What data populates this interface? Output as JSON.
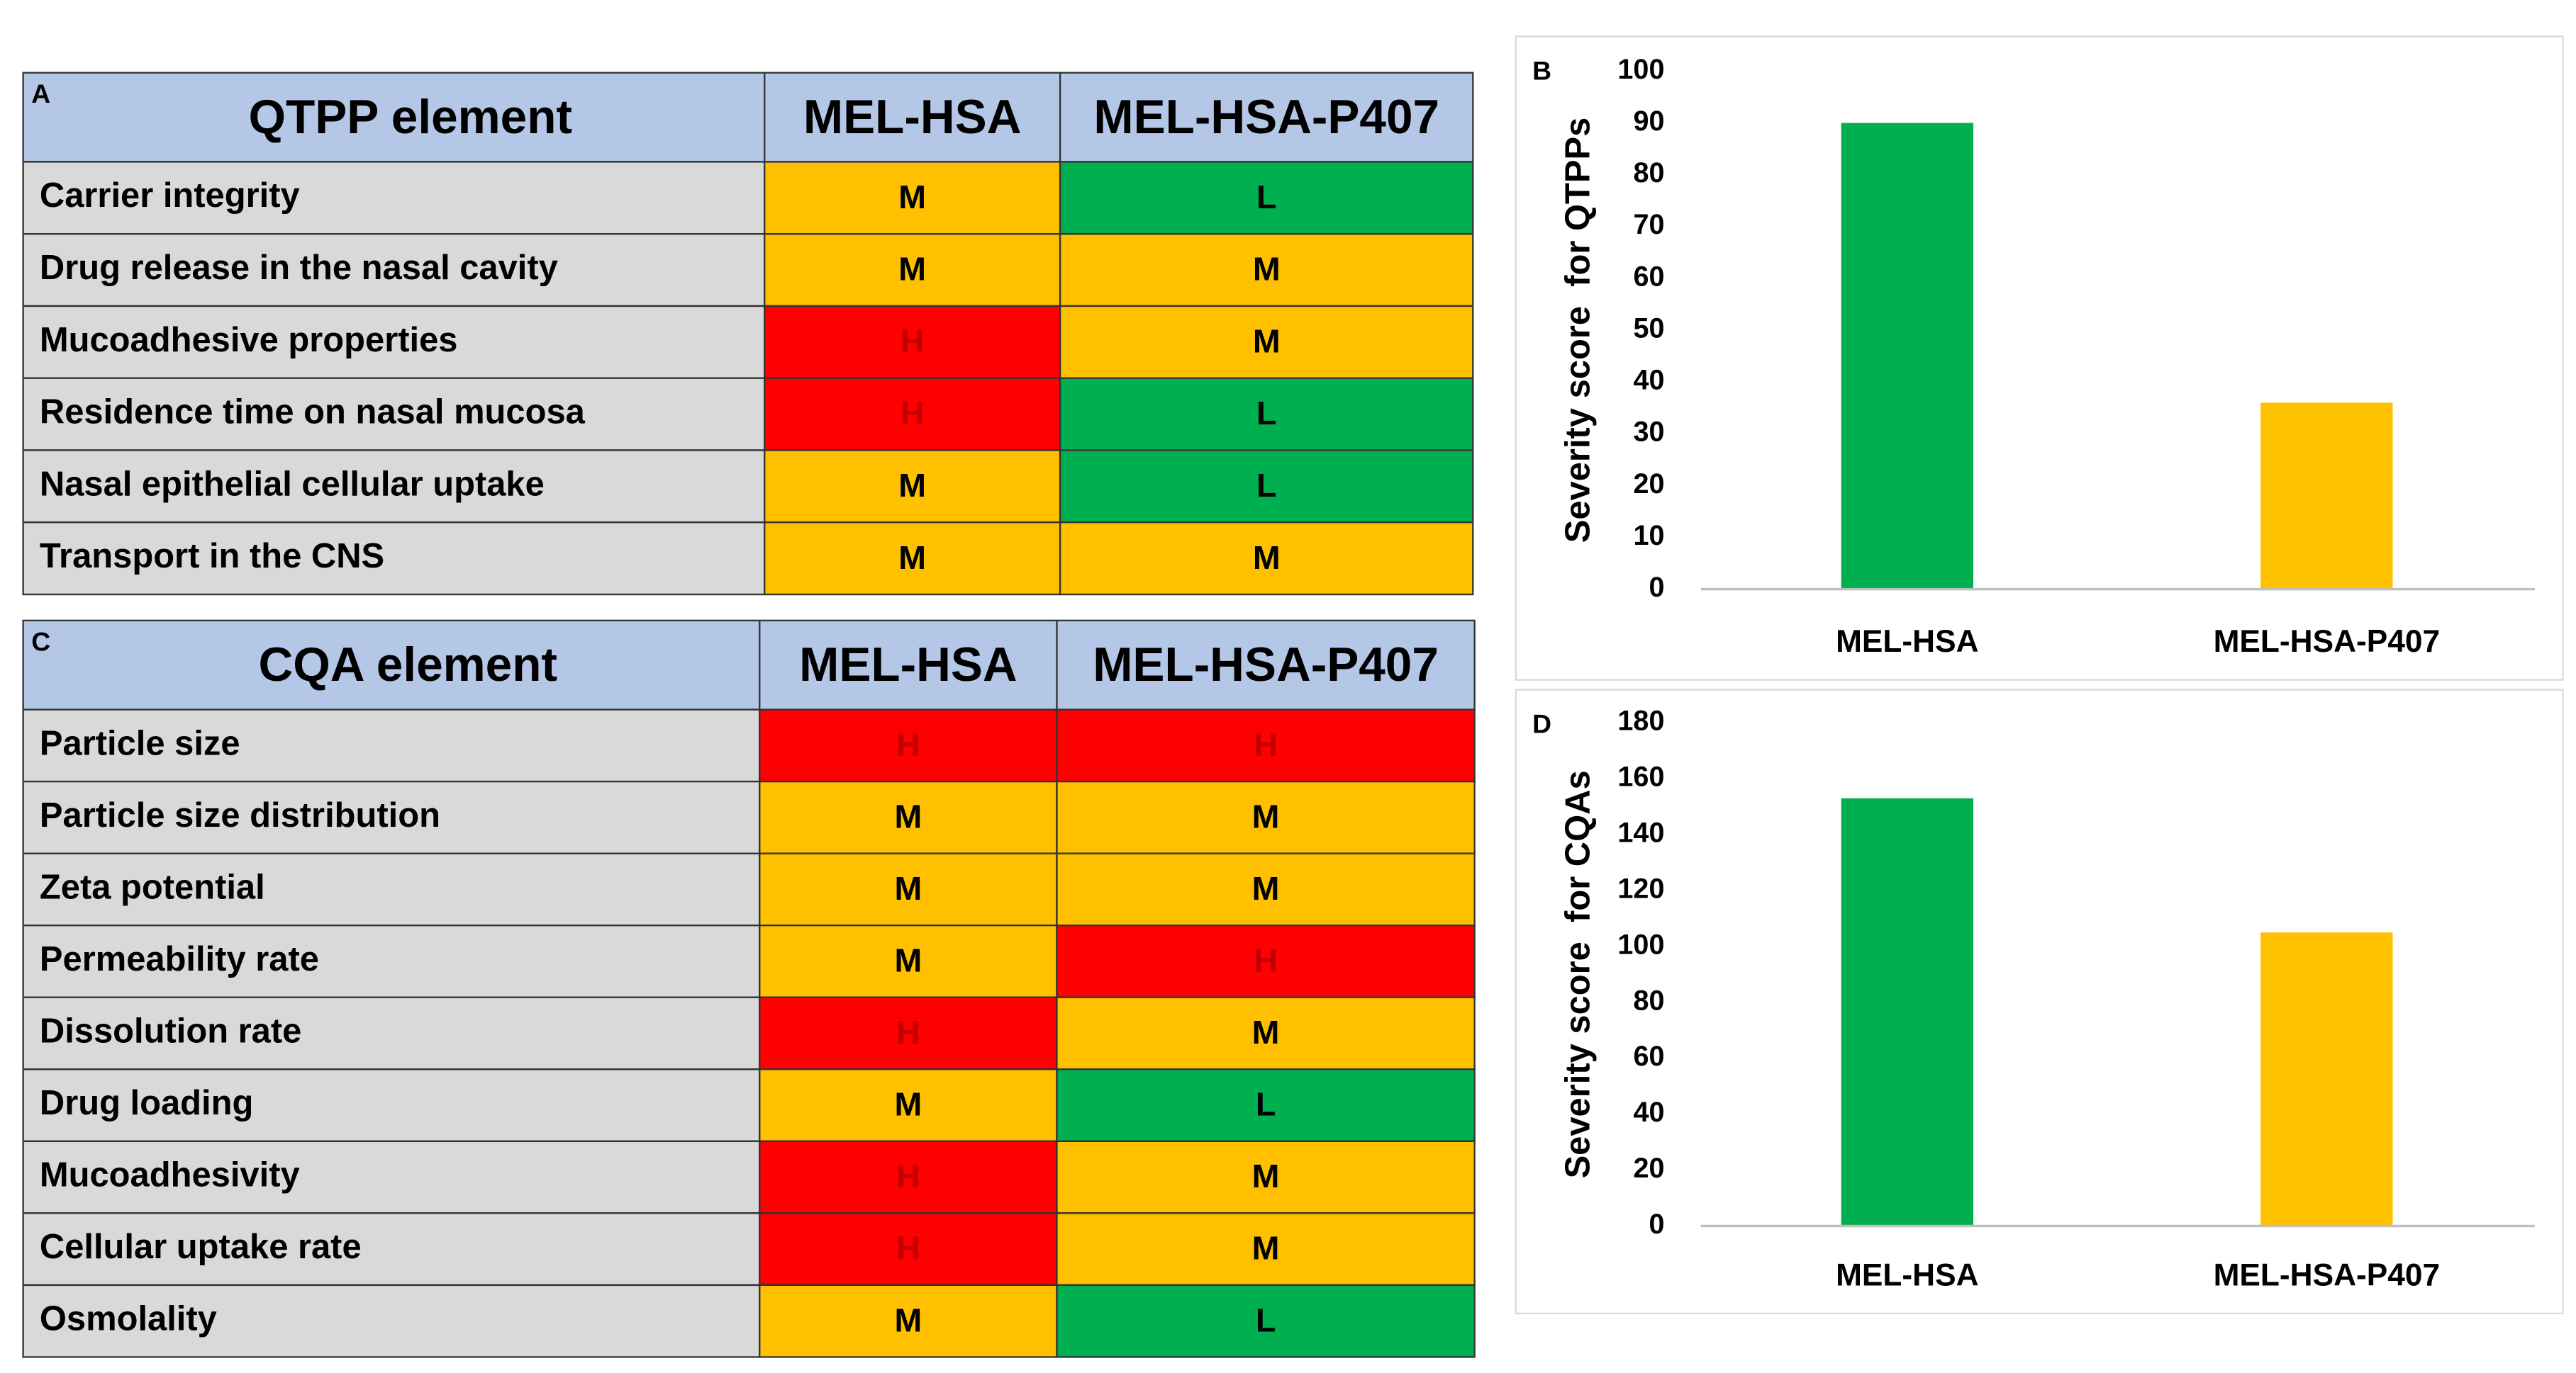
{
  "tables": [
    {
      "letter": "A",
      "header": [
        "QTPP element",
        "MEL-HSA",
        "MEL-HSA-P407"
      ],
      "rows": [
        [
          "Carrier integrity",
          "M",
          "L"
        ],
        [
          "Drug release in the nasal cavity",
          "M",
          "M"
        ],
        [
          "Mucoadhesive properties",
          "H",
          "M"
        ],
        [
          "Residence time on nasal mucosa",
          "H",
          "L"
        ],
        [
          "Nasal epithelial cellular uptake",
          "M",
          "L"
        ],
        [
          "Transport in the CNS",
          "M",
          "M"
        ]
      ]
    },
    {
      "letter": "C",
      "header": [
        "CQA element",
        "MEL-HSA",
        "MEL-HSA-P407"
      ],
      "rows": [
        [
          "Particle size",
          "H",
          "H"
        ],
        [
          "Particle size distribution",
          "M",
          "M"
        ],
        [
          "Zeta potential",
          "M",
          "M"
        ],
        [
          "Permeability rate",
          "M",
          "H"
        ],
        [
          "Dissolution rate",
          "H",
          "M"
        ],
        [
          "Drug loading",
          "M",
          "L"
        ],
        [
          "Mucoadhesivity",
          "H",
          "M"
        ],
        [
          "Cellular uptake rate",
          "H",
          "M"
        ],
        [
          "Osmolality",
          "M",
          "L"
        ]
      ]
    }
  ],
  "cell_colors": {
    "H": "#ff0000",
    "M": "#ffc000",
    "L": "#00b050"
  },
  "chart_data": [
    {
      "type": "bar",
      "letter": "B",
      "y_label": "Severity score  for QTPPs",
      "categories": [
        "MEL-HSA",
        "MEL-HSA-P407"
      ],
      "values": [
        90,
        36
      ],
      "colors": [
        "#00b050",
        "#ffc000"
      ],
      "ylim": [
        0,
        100
      ],
      "yticks": [
        0,
        10,
        20,
        30,
        40,
        50,
        60,
        70,
        80,
        90,
        100
      ]
    },
    {
      "type": "bar",
      "letter": "D",
      "y_label": "Severity score  for CQAs",
      "categories": [
        "MEL-HSA",
        "MEL-HSA-P407"
      ],
      "values": [
        153,
        105
      ],
      "colors": [
        "#00b050",
        "#ffc000"
      ],
      "ylim": [
        0,
        180
      ],
      "yticks": [
        0,
        20,
        40,
        60,
        80,
        100,
        120,
        140,
        160,
        180
      ]
    }
  ]
}
